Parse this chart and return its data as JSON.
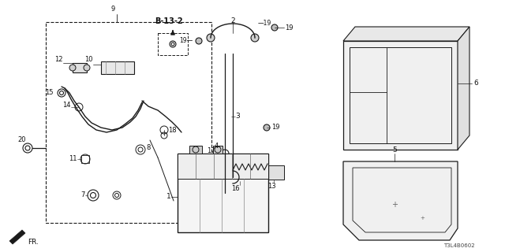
{
  "bg": "#ffffff",
  "lc": "#1a1a1a",
  "tc": "#111111",
  "figsize": [
    6.4,
    3.2
  ],
  "dpi": 100,
  "xlim": [
    0,
    640
  ],
  "ylim": [
    0,
    320
  ],
  "diagram_id": "T3L4B0602"
}
